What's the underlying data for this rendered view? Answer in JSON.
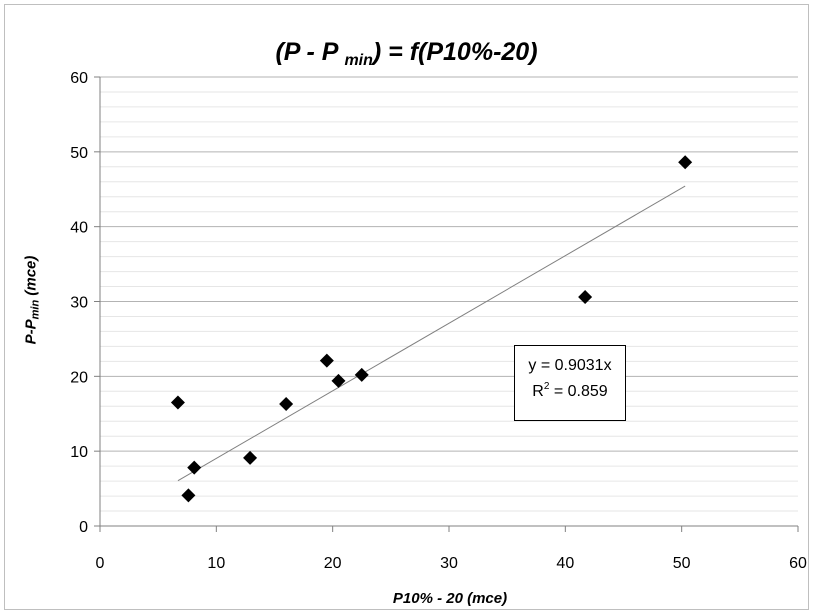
{
  "chart_data": {
    "type": "scatter",
    "title": {
      "main": "(P - P ",
      "sub": "min",
      "tail": ") = f(P10%-20)"
    },
    "xlabel": "P10% - 20 (mce)",
    "ylabel": {
      "main": "P-P",
      "sub": "min",
      "tail": " (mce)"
    },
    "xlim": [
      0,
      60
    ],
    "ylim": [
      0,
      60
    ],
    "x_ticks": [
      0,
      10,
      20,
      30,
      40,
      50,
      60
    ],
    "y_ticks": [
      0,
      10,
      20,
      30,
      40,
      50,
      60
    ],
    "minor_grid_step": 2,
    "grid": true,
    "marker": "diamond",
    "marker_color": "#000000",
    "series": [
      {
        "points": [
          {
            "x": 6.7,
            "y": 16.5
          },
          {
            "x": 7.6,
            "y": 4.1
          },
          {
            "x": 8.1,
            "y": 7.8
          },
          {
            "x": 12.9,
            "y": 9.1
          },
          {
            "x": 16.0,
            "y": 16.3
          },
          {
            "x": 19.5,
            "y": 22.1
          },
          {
            "x": 20.5,
            "y": 19.4
          },
          {
            "x": 22.5,
            "y": 20.2
          },
          {
            "x": 41.7,
            "y": 30.6
          },
          {
            "x": 50.3,
            "y": 48.6
          }
        ]
      }
    ],
    "trendline": {
      "slope": 0.9031,
      "x_range": [
        6.7,
        50.3
      ],
      "color": "#808080"
    },
    "annotation": {
      "line1": "y = 0.9031x",
      "line2_main": "R",
      "line2_sup": "2",
      "line2_tail": " = 0.859"
    }
  }
}
